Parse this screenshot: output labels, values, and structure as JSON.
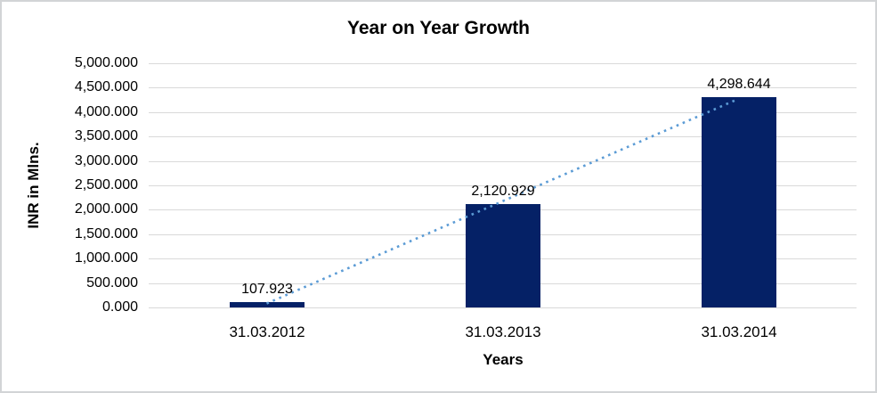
{
  "chart_data": {
    "type": "bar",
    "title": "Year on Year Growth",
    "xlabel": "Years",
    "ylabel": "INR in Mlns.",
    "categories": [
      "31.03.2012",
      "31.03.2013",
      "31.03.2014"
    ],
    "values": [
      107.923,
      2120.929,
      4298.644
    ],
    "data_labels": [
      "107.923",
      "2,120.929",
      "4,298.644"
    ],
    "ylim": [
      0,
      5000
    ],
    "ytick_step": 500,
    "ytick_labels_top_to_bottom": [
      "5,000.000",
      "4,500.000",
      "4,000.000",
      "3,500.000",
      "3,000.000",
      "2,500.000",
      "2,000.000",
      "1,500.000",
      "1,000.000",
      "500.000",
      "0.000"
    ],
    "grid": "horizontal",
    "legend": "none",
    "bar_color": "#052166",
    "gridline_color": "#d9d9d9",
    "text_color": "#000000",
    "frame_border_color": "#d2d4d6",
    "trendline": {
      "kind": "linear",
      "style": "dotted",
      "color": "#5b9bd5"
    }
  }
}
